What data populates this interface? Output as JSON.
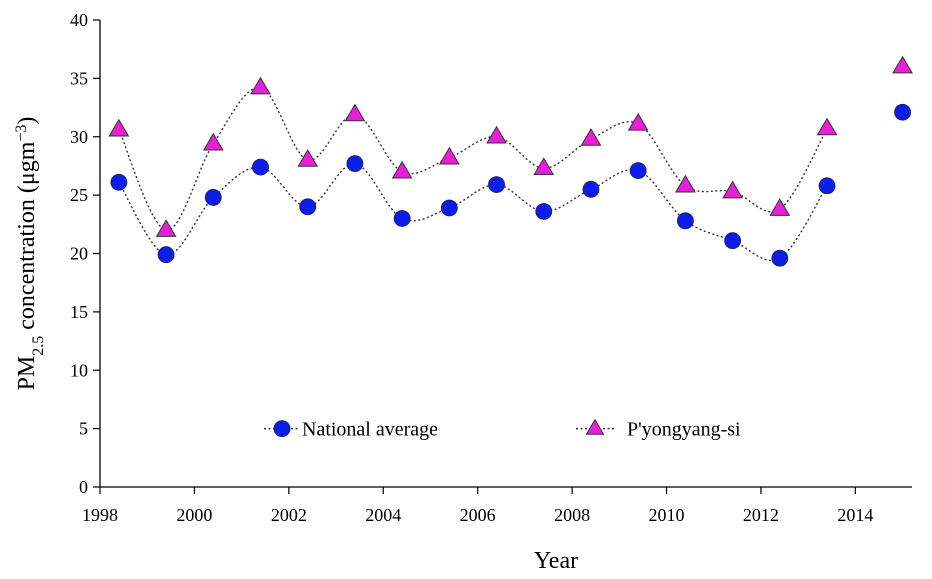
{
  "chart_data": {
    "type": "line",
    "title": "",
    "xlabel": "Year",
    "ylabel": {
      "prefix": "PM",
      "subscript": "2.5",
      "middle": " concentration (μgm",
      "superscript": "−3",
      "suffix": ")"
    },
    "xlim": [
      1998,
      2015.2
    ],
    "ylim": [
      0,
      40
    ],
    "xticks": [
      1998,
      2000,
      2002,
      2004,
      2006,
      2008,
      2010,
      2012,
      2014
    ],
    "yticks": [
      0,
      5,
      10,
      15,
      20,
      25,
      30,
      35,
      40
    ],
    "legend_position": "bottom-center",
    "series": [
      {
        "name": "National average",
        "marker": "circle",
        "color": "#0a1ee8",
        "x": [
          1998.4,
          1999.4,
          2000.4,
          2001.4,
          2002.4,
          2003.4,
          2004.4,
          2005.4,
          2006.4,
          2007.4,
          2008.4,
          2009.4,
          2010.4,
          2011.4,
          2012.4,
          2013.4,
          2015.0
        ],
        "values": [
          26.1,
          19.9,
          24.8,
          27.4,
          24.0,
          27.7,
          23.0,
          23.9,
          25.9,
          23.6,
          25.5,
          27.1,
          22.8,
          21.1,
          19.6,
          25.8,
          32.1
        ],
        "connected_count": 16
      },
      {
        "name": "P'yongyang-si",
        "marker": "triangle",
        "color": "#e81ed8",
        "x": [
          1998.4,
          1999.4,
          2000.4,
          2001.4,
          2002.4,
          2003.4,
          2004.4,
          2005.4,
          2006.4,
          2007.4,
          2008.4,
          2009.4,
          2010.4,
          2011.4,
          2012.4,
          2013.4,
          2015.0
        ],
        "values": [
          30.6,
          22.0,
          29.4,
          34.2,
          28.0,
          31.9,
          27.0,
          28.2,
          30.0,
          27.3,
          29.8,
          31.1,
          25.8,
          25.3,
          23.8,
          30.7,
          36.0
        ],
        "connected_count": 16
      }
    ]
  }
}
